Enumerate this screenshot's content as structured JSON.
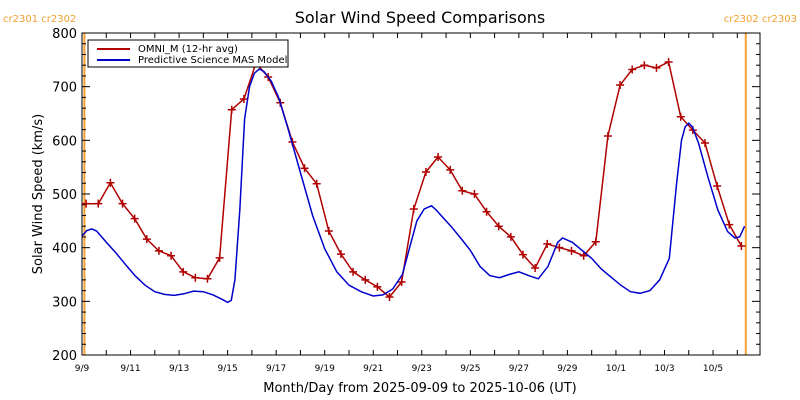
{
  "chart_data": {
    "type": "line",
    "title": "Solar Wind Speed Comparisons",
    "xlabel": "Month/Day from 2025-09-09 to 2025-10-06 (UT)",
    "ylabel": "Solar Wind Speed (km/s)",
    "x_units": "days since 2025-09-09 00:00 UT",
    "xlim": [
      0,
      27.95
    ],
    "ylim": [
      200,
      800
    ],
    "grid": false,
    "legend_position": "top-left",
    "x_tick_labels": [
      {
        "day": 0,
        "label": "9/9"
      },
      {
        "day": 2,
        "label": "9/11"
      },
      {
        "day": 4,
        "label": "9/13"
      },
      {
        "day": 6,
        "label": "9/15"
      },
      {
        "day": 8,
        "label": "9/17"
      },
      {
        "day": 10,
        "label": "9/19"
      },
      {
        "day": 12,
        "label": "9/21"
      },
      {
        "day": 14,
        "label": "9/23"
      },
      {
        "day": 16,
        "label": "9/25"
      },
      {
        "day": 18,
        "label": "9/27"
      },
      {
        "day": 20,
        "label": "9/29"
      },
      {
        "day": 22,
        "label": "10/1"
      },
      {
        "day": 24,
        "label": "10/3"
      },
      {
        "day": 26,
        "label": "10/5"
      }
    ],
    "y_ticks": [
      200,
      300,
      400,
      500,
      600,
      700,
      800
    ],
    "carrington_markers": [
      {
        "day": 0.1,
        "label": "cr2301  cr2302",
        "side": "left"
      },
      {
        "day": 27.35,
        "label": "cr2302  cr2303",
        "side": "right"
      }
    ],
    "series": [
      {
        "name": "OMNI_M (12-hr avg)",
        "color": "#b00000",
        "markers": true,
        "x": [
          0.17,
          0.67,
          1.17,
          1.67,
          2.17,
          2.67,
          3.17,
          3.67,
          4.17,
          4.67,
          5.17,
          5.67,
          6.17,
          6.67,
          7.17,
          7.67,
          8.17,
          8.67,
          9.17,
          9.67,
          10.17,
          10.67,
          11.17,
          11.67,
          12.17,
          12.67,
          13.17,
          13.67,
          14.17,
          14.67,
          15.17,
          15.67,
          16.17,
          16.67,
          17.17,
          17.67,
          18.17,
          18.67,
          19.17,
          19.67,
          20.17,
          20.67,
          21.17,
          21.67,
          22.17,
          22.67,
          23.17,
          23.67,
          24.17,
          24.67,
          25.17,
          25.67,
          26.17,
          26.67,
          27.17
        ],
        "values": [
          482,
          482,
          521,
          482,
          454,
          416,
          394,
          385,
          355,
          344,
          342,
          381,
          657,
          677,
          744,
          718,
          670,
          597,
          548,
          519,
          431,
          388,
          355,
          340,
          327,
          308,
          336,
          472,
          541,
          569,
          545,
          506,
          500,
          467,
          440,
          420,
          387,
          362,
          407,
          400,
          394,
          385,
          411,
          608,
          703,
          732,
          740,
          735,
          746,
          644,
          619,
          595,
          515,
          443,
          403
        ]
      },
      {
        "name": "Predictive Science MAS Model",
        "color": "#0000cc",
        "markers": false,
        "x": [
          0.0,
          0.2,
          0.4,
          0.6,
          1.0,
          1.4,
          1.8,
          2.2,
          2.6,
          3.0,
          3.4,
          3.8,
          4.2,
          4.6,
          5.0,
          5.4,
          5.8,
          6.0,
          6.15,
          6.3,
          6.5,
          6.7,
          6.9,
          7.1,
          7.3,
          7.5,
          7.8,
          8.1,
          8.5,
          9.0,
          9.5,
          10.0,
          10.5,
          11.0,
          11.5,
          12.0,
          12.4,
          12.8,
          13.2,
          13.5,
          13.8,
          14.1,
          14.4,
          14.6,
          14.9,
          15.2,
          15.6,
          16.0,
          16.4,
          16.8,
          17.2,
          17.6,
          18.0,
          18.4,
          18.8,
          19.2,
          19.6,
          19.8,
          20.2,
          20.6,
          21.0,
          21.4,
          21.8,
          22.2,
          22.6,
          23.0,
          23.4,
          23.8,
          24.2,
          24.5,
          24.7,
          24.85,
          25.0,
          25.15,
          25.4,
          25.8,
          26.2,
          26.6,
          26.9,
          27.1,
          27.3
        ],
        "values": [
          422,
          432,
          435,
          431,
          410,
          390,
          368,
          347,
          330,
          318,
          313,
          311,
          314,
          319,
          318,
          312,
          303,
          298,
          302,
          340,
          470,
          640,
          700,
          725,
          733,
          728,
          710,
          680,
          620,
          540,
          460,
          398,
          355,
          330,
          318,
          310,
          312,
          323,
          350,
          400,
          450,
          472,
          478,
          470,
          455,
          440,
          418,
          395,
          365,
          348,
          344,
          350,
          355,
          348,
          342,
          365,
          410,
          418,
          410,
          395,
          380,
          360,
          345,
          330,
          318,
          315,
          320,
          340,
          380,
          520,
          600,
          625,
          632,
          625,
          595,
          530,
          470,
          430,
          418,
          420,
          440
        ]
      }
    ]
  }
}
